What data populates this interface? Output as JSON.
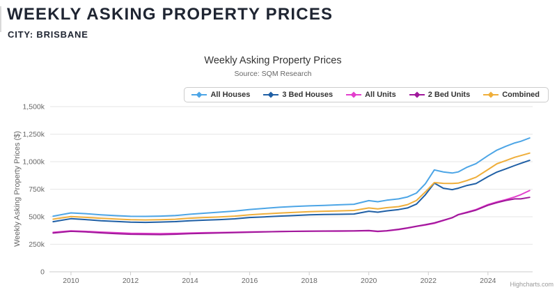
{
  "page": {
    "title": "WEEKLY ASKING PROPERTY PRICES",
    "subtitle": "CITY: BRISBANE"
  },
  "chart_data": {
    "type": "line",
    "title": "Weekly Asking Property Prices",
    "subtitle": "Source: SQM Research",
    "xlabel": "",
    "ylabel": "Weekly Asking Property Prices ($)",
    "credit": "Highcharts.com",
    "unit": "thousands of dollars",
    "legend_position": "top-right",
    "grid": "horizontal",
    "grid_color": "#e6e6e6",
    "axis_line_color": "#cccccc",
    "axis_label_color": "#666666",
    "xlim": [
      2009.3,
      2025.5
    ],
    "ylim": [
      0,
      1500
    ],
    "y_ticks": [
      {
        "v": 0,
        "label": "0"
      },
      {
        "v": 250,
        "label": "250k"
      },
      {
        "v": 500,
        "label": "500k"
      },
      {
        "v": 750,
        "label": "750k"
      },
      {
        "v": 1000,
        "label": "1,000k"
      },
      {
        "v": 1250,
        "label": "1,250k"
      },
      {
        "v": 1500,
        "label": "1,500k"
      }
    ],
    "x_ticks": [
      {
        "v": 2010,
        "label": "2010"
      },
      {
        "v": 2012,
        "label": "2012"
      },
      {
        "v": 2014,
        "label": "2014"
      },
      {
        "v": 2016,
        "label": "2016"
      },
      {
        "v": 2018,
        "label": "2018"
      },
      {
        "v": 2020,
        "label": "2020"
      },
      {
        "v": 2022,
        "label": "2022"
      },
      {
        "v": 2024,
        "label": "2024"
      }
    ],
    "x": [
      2009.4,
      2010,
      2010.5,
      2011,
      2011.5,
      2012,
      2012.5,
      2013,
      2013.5,
      2014,
      2014.5,
      2015,
      2015.5,
      2016,
      2016.5,
      2017,
      2017.5,
      2018,
      2018.5,
      2019,
      2019.5,
      2020,
      2020.3,
      2020.6,
      2021,
      2021.3,
      2021.6,
      2021.9,
      2022.2,
      2022.5,
      2022.8,
      2023,
      2023.3,
      2023.6,
      2024,
      2024.3,
      2024.6,
      2024.9,
      2025.1,
      2025.4
    ],
    "series": [
      {
        "name": "All Houses",
        "color": "#4ca5e6",
        "values": [
          505,
          535,
          528,
          518,
          510,
          504,
          503,
          506,
          511,
          523,
          532,
          542,
          551,
          566,
          576,
          586,
          593,
          599,
          603,
          608,
          613,
          646,
          636,
          650,
          662,
          680,
          715,
          800,
          925,
          907,
          897,
          907,
          950,
          982,
          1055,
          1105,
          1140,
          1170,
          1185,
          1215
        ]
      },
      {
        "name": "3 Bed Houses",
        "color": "#1f5fa5",
        "values": [
          455,
          482,
          474,
          464,
          457,
          451,
          449,
          452,
          456,
          463,
          469,
          474,
          481,
          493,
          499,
          506,
          511,
          517,
          520,
          522,
          525,
          550,
          541,
          553,
          565,
          580,
          615,
          700,
          805,
          759,
          746,
          759,
          784,
          801,
          864,
          906,
          935,
          965,
          985,
          1012
        ]
      },
      {
        "name": "All Units",
        "color": "#e33fcd",
        "values": [
          358,
          372,
          367,
          361,
          355,
          350,
          348,
          347,
          349,
          352,
          355,
          357,
          359,
          362,
          364,
          366,
          368,
          369,
          369,
          369,
          370,
          373,
          366,
          371,
          383,
          396,
          412,
          425,
          440,
          465,
          490,
          520,
          542,
          565,
          610,
          635,
          655,
          680,
          700,
          738
        ]
      },
      {
        "name": "2 Bed Units",
        "color": "#a0189b",
        "values": [
          352,
          368,
          362,
          354,
          347,
          341,
          339,
          338,
          341,
          346,
          350,
          353,
          356,
          359,
          362,
          365,
          367,
          369,
          370,
          371,
          372,
          375,
          368,
          373,
          386,
          399,
          414,
          428,
          444,
          468,
          492,
          518,
          538,
          560,
          604,
          628,
          648,
          662,
          662,
          676
        ]
      },
      {
        "name": "Combined",
        "color": "#efae3a",
        "values": [
          478,
          501,
          494,
          486,
          479,
          473,
          471,
          473,
          477,
          487,
          493,
          499,
          506,
          518,
          526,
          533,
          539,
          546,
          550,
          553,
          557,
          580,
          571,
          582,
          592,
          610,
          648,
          725,
          810,
          803,
          802,
          805,
          829,
          859,
          928,
          981,
          1010,
          1040,
          1055,
          1078
        ]
      }
    ]
  }
}
